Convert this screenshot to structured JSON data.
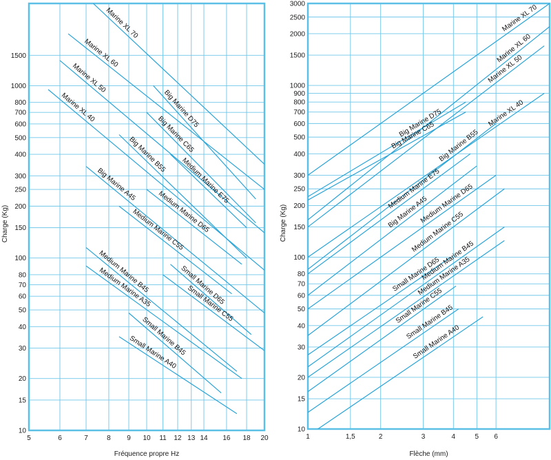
{
  "chart_data": [
    {
      "type": "line",
      "xscale": "log",
      "yscale": "log",
      "xlim": [
        5,
        20
      ],
      "ylim": [
        10,
        3000
      ],
      "x_ticks": [
        5,
        6,
        7,
        8,
        9,
        10,
        11,
        12,
        13,
        14,
        16,
        18,
        20
      ],
      "y_ticks": [
        10,
        15,
        20,
        30,
        40,
        50,
        60,
        70,
        80,
        100,
        150,
        200,
        250,
        300,
        400,
        500,
        600,
        700,
        800,
        1000,
        1500
      ],
      "xlabel": "Fréquence propre Hz",
      "ylabel": "Charge (Kg)",
      "grid": true,
      "series": [
        {
          "name": "Marine XL 70",
          "points": [
            [
              7.3,
              3000
            ],
            [
              20,
              350
            ]
          ]
        },
        {
          "name": "Marine XL 60",
          "points": [
            [
              6.3,
              2000
            ],
            [
              20,
              250
            ]
          ]
        },
        {
          "name": "Marine XL 50",
          "points": [
            [
              6.0,
              1400
            ],
            [
              20,
              140
            ]
          ]
        },
        {
          "name": "Marine XL 40",
          "points": [
            [
              5.6,
              950
            ],
            [
              20,
              85
            ]
          ]
        },
        {
          "name": "Big Marine D75",
          "points": [
            [
              10.4,
              1000
            ],
            [
              19,
              220
            ]
          ]
        },
        {
          "name": "Big Marine C65",
          "points": [
            [
              10.0,
              700
            ],
            [
              19,
              160
            ]
          ]
        },
        {
          "name": "Medium Marine E75",
          "points": [
            [
              11.5,
              400
            ],
            [
              18,
              150
            ]
          ]
        },
        {
          "name": "Big Marine B55",
          "points": [
            [
              8.5,
              520
            ],
            [
              18,
              100
            ]
          ]
        },
        {
          "name": "Medium Marine D65",
          "points": [
            [
              10.0,
              250
            ],
            [
              17.5,
              92
            ]
          ]
        },
        {
          "name": "Big Marine A45",
          "points": [
            [
              7.0,
              340
            ],
            [
              20,
              48
            ]
          ]
        },
        {
          "name": "Medium Marine C55",
          "points": [
            [
              8.5,
              200
            ],
            [
              16.5,
              62
            ]
          ]
        },
        {
          "name": "Small Marine D65",
          "points": [
            [
              11.5,
              92
            ],
            [
              18.5,
              36
            ]
          ]
        },
        {
          "name": "Small Marine C55",
          "points": [
            [
              11.0,
              80
            ],
            [
              20,
              29
            ]
          ]
        },
        {
          "name": "Medium Marine B45",
          "points": [
            [
              7.0,
              115
            ],
            [
              17,
              22
            ]
          ]
        },
        {
          "name": "Medium Marine A35",
          "points": [
            [
              7.0,
              90
            ],
            [
              17.5,
              20
            ]
          ]
        },
        {
          "name": "Small Marine B45",
          "points": [
            [
              9.0,
              48
            ],
            [
              15.5,
              16.5
            ]
          ]
        },
        {
          "name": "Small Marine A40",
          "points": [
            [
              8.5,
              35
            ],
            [
              17,
              12.5
            ]
          ]
        }
      ]
    },
    {
      "type": "line",
      "xscale": "log",
      "yscale": "log",
      "xlim": [
        1,
        10
      ],
      "ylim": [
        10,
        3000
      ],
      "x_ticks": [
        1,
        1.5,
        2,
        3,
        4,
        5,
        6
      ],
      "x_tick_labels": [
        "1",
        "1,5",
        "2",
        "3",
        "4",
        "5",
        "6"
      ],
      "y_ticks": [
        10,
        15,
        20,
        30,
        40,
        50,
        60,
        70,
        80,
        100,
        150,
        200,
        250,
        300,
        400,
        500,
        600,
        700,
        800,
        900,
        1000,
        1500,
        2000,
        2500,
        3000
      ],
      "xlabel": "Flèche (mm)",
      "ylabel": "Charge (Kg)",
      "grid": true,
      "series": [
        {
          "name": "Marine XL 70",
          "points": [
            [
              1,
              300
            ],
            [
              10,
              3000
            ]
          ]
        },
        {
          "name": "Marine XL 60",
          "points": [
            [
              1,
              165
            ],
            [
              10,
              2200
            ]
          ]
        },
        {
          "name": "Marine XL 50",
          "points": [
            [
              1,
              150
            ],
            [
              9.5,
              1700
            ]
          ]
        },
        {
          "name": "Marine XL 40",
          "points": [
            [
              1,
              100
            ],
            [
              9.5,
              900
            ]
          ]
        },
        {
          "name": "Big Marine D75",
          "points": [
            [
              1,
              225
            ],
            [
              4.5,
              800
            ]
          ]
        },
        {
          "name": "Big Marine C65",
          "points": [
            [
              1,
              215
            ],
            [
              4.5,
              700
            ]
          ]
        },
        {
          "name": "Big Marine B55",
          "points": [
            [
              1,
              85
            ],
            [
              6,
              600
            ]
          ]
        },
        {
          "name": "Medium Marine E75",
          "points": [
            [
              1,
              80
            ],
            [
              4.7,
              400
            ]
          ]
        },
        {
          "name": "Big Marine A45",
          "points": [
            [
              1,
              60
            ],
            [
              5,
              340
            ]
          ]
        },
        {
          "name": "Medium Marine D65",
          "points": [
            [
              1,
              50
            ],
            [
              6,
              300
            ]
          ]
        },
        {
          "name": "Medium Marine C55",
          "points": [
            [
              1,
              35
            ],
            [
              6.5,
              250
            ]
          ]
        },
        {
          "name": "Small Marine D65",
          "points": [
            [
              1,
              27
            ],
            [
              3.9,
              100
            ]
          ]
        },
        {
          "name": "Medium Marine B45",
          "points": [
            [
              1,
              23
            ],
            [
              6.5,
              150
            ]
          ]
        },
        {
          "name": "Medium Marine A35",
          "points": [
            [
              1,
              20
            ],
            [
              6.5,
              125
            ]
          ]
        },
        {
          "name": "Small Marine C55",
          "points": [
            [
              1,
              16.5
            ],
            [
              4.1,
              68
            ]
          ]
        },
        {
          "name": "Small Marine B45",
          "points": [
            [
              1,
              12.5
            ],
            [
              4.2,
              50
            ]
          ]
        },
        {
          "name": "Small Marine A40",
          "points": [
            [
              1.1,
              10
            ],
            [
              5.3,
              45
            ]
          ]
        }
      ]
    }
  ]
}
